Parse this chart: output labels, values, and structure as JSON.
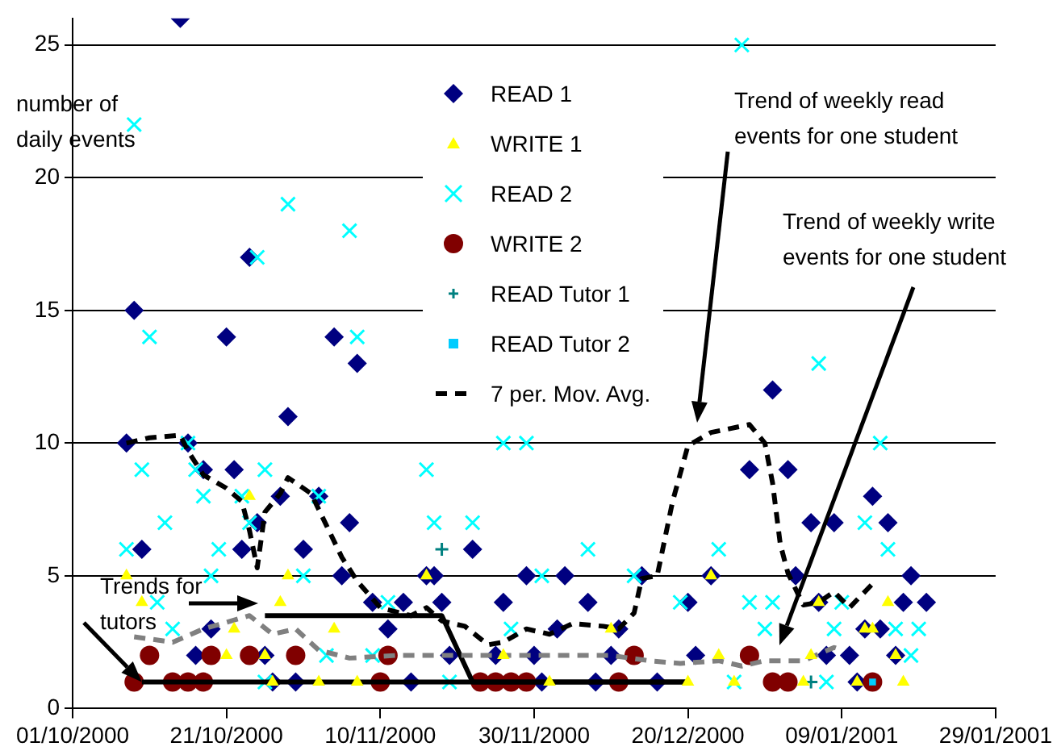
{
  "chart_data": {
    "type": "scatter",
    "ylabel": "number of daily events",
    "xlim": [
      "2000-10-01",
      "2001-01-29"
    ],
    "xticks": [
      {
        "value": "2000-10-01",
        "label": "01/10/2000"
      },
      {
        "value": "2000-10-21",
        "label": "21/10/2000"
      },
      {
        "value": "2000-11-10",
        "label": "10/11/2000"
      },
      {
        "value": "2000-11-30",
        "label": "30/11/2000"
      },
      {
        "value": "2000-12-20",
        "label": "20/12/2000"
      },
      {
        "value": "2001-01-09",
        "label": "09/01/2001"
      },
      {
        "value": "2001-01-29",
        "label": "29/01/2001"
      }
    ],
    "ylim": [
      0,
      26
    ],
    "yticks": [
      0,
      5,
      10,
      15,
      20,
      25
    ],
    "grid": "y",
    "legend": "top",
    "series": [
      {
        "name": "READ 1",
        "type": "scatter",
        "marker": "diamond",
        "color": "#000080",
        "x": [
          "2000-10-08",
          "2000-10-09",
          "2000-10-10",
          "2000-10-15",
          "2000-10-16",
          "2000-10-17",
          "2000-10-18",
          "2000-10-19",
          "2000-10-21",
          "2000-10-22",
          "2000-10-23",
          "2000-10-24",
          "2000-10-25",
          "2000-10-26",
          "2000-10-27",
          "2000-10-28",
          "2000-10-29",
          "2000-10-30",
          "2000-10-31",
          "2000-11-02",
          "2000-11-04",
          "2000-11-05",
          "2000-11-06",
          "2000-11-07",
          "2000-11-09",
          "2000-11-11",
          "2000-11-13",
          "2000-11-14",
          "2000-11-16",
          "2000-11-17",
          "2000-11-18",
          "2000-11-19",
          "2000-11-22",
          "2000-11-25",
          "2000-11-26",
          "2000-11-29",
          "2000-11-30",
          "2000-12-01",
          "2000-12-03",
          "2000-12-04",
          "2000-12-07",
          "2000-12-08",
          "2000-12-10",
          "2000-12-11",
          "2000-12-14",
          "2000-12-16",
          "2000-12-20",
          "2000-12-21",
          "2000-12-23",
          "2000-12-28",
          "2000-12-31",
          "2001-01-02",
          "2001-01-03",
          "2001-01-05",
          "2001-01-06",
          "2001-01-07",
          "2001-01-08",
          "2001-01-10",
          "2001-01-11",
          "2001-01-12",
          "2001-01-13",
          "2001-01-14",
          "2001-01-15",
          "2001-01-16",
          "2001-01-17",
          "2001-01-18",
          "2001-01-20"
        ],
        "values": [
          10,
          15,
          6,
          26,
          10,
          2,
          9,
          3,
          14,
          9,
          6,
          17,
          7,
          2,
          1,
          8,
          11,
          1,
          6,
          8,
          14,
          5,
          7,
          13,
          4,
          3,
          4,
          1,
          5,
          5,
          4,
          2,
          6,
          2,
          4,
          5,
          2,
          1,
          3,
          5,
          4,
          1,
          2,
          3,
          5,
          1,
          4,
          2,
          5,
          9,
          12,
          9,
          5,
          7,
          4,
          2,
          7,
          2,
          1,
          3,
          8,
          3,
          7,
          2,
          4,
          5,
          4
        ]
      },
      {
        "name": "WRITE 1",
        "type": "scatter",
        "marker": "triangle",
        "color": "#ffff00",
        "x": [
          "2000-10-08",
          "2000-10-10",
          "2000-10-21",
          "2000-10-22",
          "2000-10-24",
          "2000-10-26",
          "2000-10-27",
          "2000-10-28",
          "2000-10-29",
          "2000-11-02",
          "2000-11-04",
          "2000-11-07",
          "2000-11-16",
          "2000-11-26",
          "2000-12-02",
          "2000-12-10",
          "2000-12-20",
          "2000-12-23",
          "2000-12-24",
          "2000-12-26",
          "2001-01-04",
          "2001-01-05",
          "2001-01-06",
          "2001-01-11",
          "2001-01-12",
          "2001-01-13",
          "2001-01-15",
          "2001-01-16",
          "2001-01-17"
        ],
        "values": [
          5,
          4,
          2,
          3,
          8,
          2,
          1,
          4,
          5,
          1,
          3,
          1,
          5,
          2,
          1,
          3,
          1,
          5,
          2,
          1,
          1,
          2,
          4,
          1,
          3,
          3,
          4,
          2,
          1
        ]
      },
      {
        "name": "READ 2",
        "type": "scatter",
        "marker": "cross",
        "color": "#00ffff",
        "x": [
          "2000-10-08",
          "2000-10-09",
          "2000-10-10",
          "2000-10-11",
          "2000-10-12",
          "2000-10-13",
          "2000-10-14",
          "2000-10-16",
          "2000-10-17",
          "2000-10-18",
          "2000-10-19",
          "2000-10-20",
          "2000-10-23",
          "2000-10-24",
          "2000-10-25",
          "2000-10-26",
          "2000-10-26",
          "2000-10-29",
          "2000-10-31",
          "2000-11-02",
          "2000-11-03",
          "2000-11-06",
          "2000-11-07",
          "2000-11-09",
          "2000-11-11",
          "2000-11-16",
          "2000-11-17",
          "2000-11-19",
          "2000-11-22",
          "2000-11-26",
          "2000-11-27",
          "2000-11-29",
          "2000-12-01",
          "2000-12-07",
          "2000-12-13",
          "2000-12-19",
          "2000-12-24",
          "2000-12-26",
          "2000-12-27",
          "2000-12-28",
          "2000-12-30",
          "2000-12-31",
          "2001-01-06",
          "2001-01-07",
          "2001-01-08",
          "2001-01-09",
          "2001-01-12",
          "2001-01-14",
          "2001-01-15",
          "2001-01-16",
          "2001-01-18",
          "2001-01-19"
        ],
        "values": [
          6,
          22,
          9,
          14,
          4,
          7,
          3,
          10,
          9,
          8,
          5,
          6,
          8,
          7,
          17,
          9,
          1,
          19,
          5,
          8,
          2,
          18,
          14,
          2,
          4,
          9,
          7,
          1,
          7,
          10,
          3,
          10,
          5,
          6,
          5,
          4,
          6,
          1,
          25,
          4,
          3,
          4,
          13,
          1,
          3,
          4,
          7,
          10,
          6,
          3,
          2,
          3
        ]
      },
      {
        "name": "WRITE 2",
        "type": "scatter",
        "marker": "circle",
        "color": "#800000",
        "x": [
          "2000-10-09",
          "2000-10-11",
          "2000-10-14",
          "2000-10-16",
          "2000-10-18",
          "2000-10-19",
          "2000-10-24",
          "2000-10-30",
          "2000-11-10",
          "2000-11-11",
          "2000-11-23",
          "2000-11-25",
          "2000-11-27",
          "2000-11-29",
          "2000-12-11",
          "2000-12-13",
          "2000-12-28",
          "2000-12-31",
          "2001-01-02",
          "2001-01-13"
        ],
        "values": [
          1,
          2,
          1,
          1,
          1,
          2,
          2,
          2,
          1,
          2,
          1,
          1,
          1,
          1,
          1,
          2,
          2,
          1,
          1,
          1
        ]
      },
      {
        "name": "READ Tutor 1",
        "type": "scatter",
        "marker": "plus",
        "color": "#008080",
        "x": [
          "2000-11-18",
          "2001-01-05"
        ],
        "values": [
          6,
          1
        ]
      },
      {
        "name": "READ Tutor 2",
        "type": "scatter",
        "marker": "square",
        "color": "#00ccff",
        "x": [
          "2001-01-13"
        ],
        "values": [
          1
        ]
      },
      {
        "name": "7 per. Mov. Avg.",
        "type": "line",
        "line_style": "dashed",
        "color": "#000000",
        "x": [
          "2000-10-08",
          "2000-10-11",
          "2000-10-15",
          "2000-10-16",
          "2000-10-18",
          "2000-10-21",
          "2000-10-23",
          "2000-10-24",
          "2000-10-25",
          "2000-10-26",
          "2000-10-28",
          "2000-10-29",
          "2000-11-01",
          "2000-11-03",
          "2000-11-05",
          "2000-11-07",
          "2000-11-10",
          "2000-11-14",
          "2000-11-16",
          "2000-11-18",
          "2000-11-21",
          "2000-11-24",
          "2000-11-26",
          "2000-11-29",
          "2000-12-02",
          "2000-12-05",
          "2000-12-09",
          "2000-12-11",
          "2000-12-13",
          "2000-12-14",
          "2000-12-16",
          "2000-12-18",
          "2000-12-20",
          "2000-12-23",
          "2000-12-28",
          "2000-12-30",
          "2000-12-31",
          "2001-01-01",
          "2001-01-02",
          "2001-01-04",
          "2001-01-06",
          "2001-01-08",
          "2001-01-10",
          "2001-01-13"
        ],
        "values": [
          10.0,
          10.2,
          10.3,
          9.7,
          8.8,
          8.3,
          7.8,
          6.7,
          5.3,
          7.4,
          8.1,
          8.7,
          8.1,
          6.9,
          5.7,
          4.8,
          3.8,
          3.5,
          3.8,
          3.3,
          3.1,
          2.4,
          2.5,
          3.0,
          2.8,
          3.2,
          3.1,
          3.0,
          3.6,
          4.9,
          5.0,
          7.8,
          9.9,
          10.4,
          10.7,
          10.0,
          8.5,
          6.2,
          5.1,
          3.9,
          4.0,
          4.4,
          3.8,
          4.7
        ]
      },
      {
        "type": "line",
        "line_style": "dashed",
        "color": "#808080",
        "x": [
          "2000-10-09",
          "2000-10-14",
          "2000-10-18",
          "2000-10-24",
          "2000-10-27",
          "2000-10-30",
          "2000-11-02",
          "2000-11-06",
          "2000-11-12",
          "2000-11-17",
          "2000-11-24",
          "2000-12-01",
          "2000-12-10",
          "2000-12-15",
          "2000-12-19",
          "2000-12-24",
          "2000-12-27",
          "2000-12-30",
          "2001-01-04",
          "2001-01-08",
          "2001-01-09"
        ],
        "values": [
          2.7,
          2.5,
          3.0,
          3.5,
          2.8,
          3.0,
          2.2,
          1.9,
          2.0,
          2.0,
          2.0,
          2.0,
          2.0,
          1.8,
          1.7,
          1.8,
          1.6,
          1.8,
          1.8,
          2.3,
          2.2
        ]
      },
      {
        "type": "line",
        "line_style": "solid",
        "color": "#000000",
        "x": [
          "2000-10-10",
          "2000-12-20"
        ],
        "values": [
          1,
          1
        ]
      },
      {
        "type": "line",
        "line_style": "solid",
        "color": "#000000",
        "x": [
          "2000-10-26",
          "2000-11-18",
          "2000-11-22",
          "2000-12-20"
        ],
        "values": [
          3.5,
          3.5,
          1,
          1
        ]
      }
    ],
    "annotations": [
      "Trend of weekly read events for one student",
      "Trend of weekly write events for one student",
      {
        "text": "Trends for tutors",
        "x": "2000-10-10",
        "y": 1
      }
    ]
  }
}
